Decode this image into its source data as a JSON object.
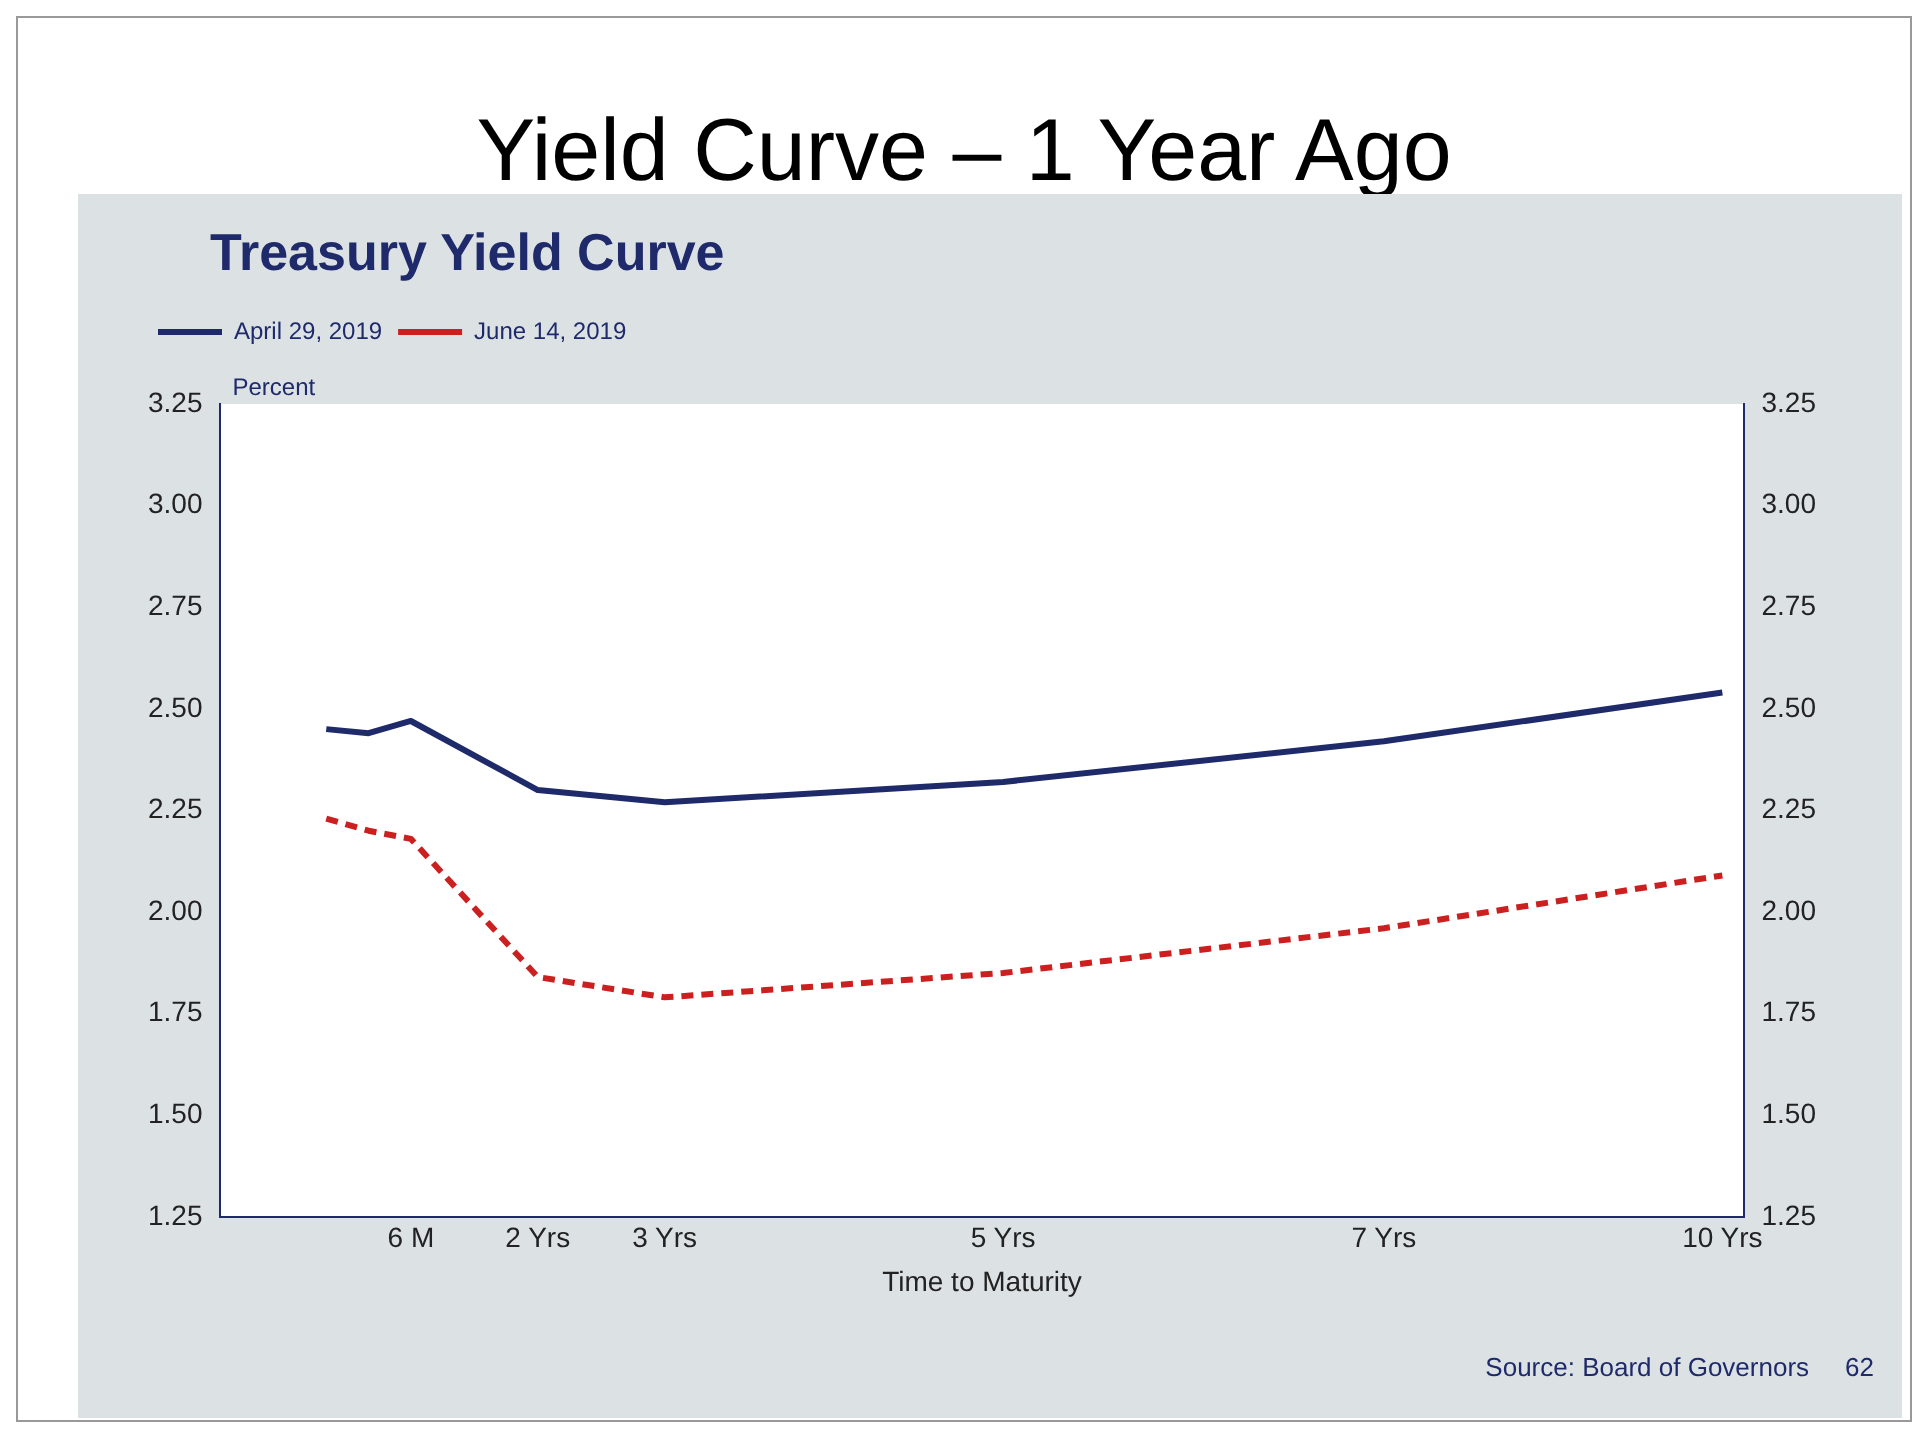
{
  "chart_data": {
    "type": "line",
    "title": "Yield Curve – 1 Year Ago",
    "subtitle": "Treasury Yield Curve",
    "ylabel": "Percent",
    "xlabel": "Time to Maturity",
    "categories": [
      null,
      null,
      null,
      null,
      "6 M",
      null,
      null,
      "2 Yrs",
      null,
      null,
      "3 Yrs",
      null,
      null,
      null,
      null,
      null,
      null,
      null,
      "5 Yrs",
      null,
      null,
      null,
      null,
      null,
      null,
      null,
      null,
      "7 Yrs",
      null,
      null,
      null,
      null,
      null,
      null,
      null,
      "10 Yrs"
    ],
    "series": [
      {
        "name": "April 29, 2019",
        "color": "#1f2a6b",
        "line_style": "solid",
        "values": [
          null,
          null,
          2.45,
          2.44,
          2.47,
          null,
          null,
          2.3,
          null,
          null,
          2.27,
          null,
          null,
          null,
          null,
          null,
          null,
          null,
          2.32,
          null,
          null,
          null,
          null,
          null,
          null,
          null,
          null,
          2.42,
          null,
          null,
          null,
          null,
          null,
          null,
          null,
          2.54
        ]
      },
      {
        "name": "June 14, 2019",
        "color": "#cc1f1f",
        "line_style": "dashed",
        "values": [
          null,
          null,
          2.23,
          2.2,
          2.18,
          null,
          null,
          1.84,
          null,
          null,
          1.79,
          null,
          null,
          null,
          null,
          null,
          null,
          null,
          1.85,
          null,
          null,
          null,
          null,
          null,
          null,
          null,
          null,
          1.96,
          null,
          null,
          null,
          null,
          null,
          null,
          null,
          2.09
        ]
      }
    ],
    "ylim": [
      1.25,
      3.25
    ],
    "yticks": [
      1.25,
      {
        "value": 1.5,
        "label": "1.50"
      },
      1.75,
      {
        "value": 2,
        "label": "2.00"
      },
      2.25,
      {
        "value": 2.5,
        "label": "2.50"
      },
      2.75,
      {
        "value": 3,
        "label": "3.00"
      },
      3.25
    ],
    "y2lim": [
      1.25,
      3.25
    ],
    "y2ticks": [
      1.25,
      {
        "value": 1.5,
        "label": "1.50"
      },
      1.75,
      {
        "value": 2,
        "label": "2.00"
      },
      2.25,
      {
        "value": 2.5,
        "label": "2.50"
      },
      2.75,
      {
        "value": 3,
        "label": "3.00"
      },
      3.25
    ],
    "grid": false,
    "legend": "top left",
    "marker": "none",
    "annotations": [
      "Source: Board of Governors",
      "62"
    ]
  }
}
